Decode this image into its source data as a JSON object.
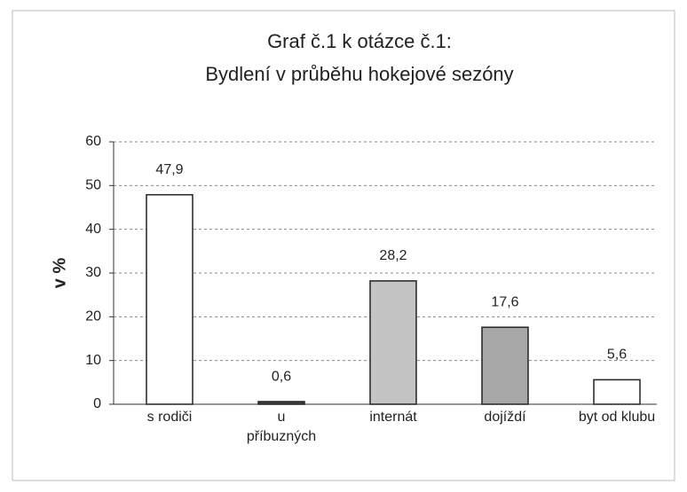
{
  "chart_data": {
    "type": "bar",
    "title": "Graf č.1 k otázce č.1:",
    "subtitle": "Bydlení v průběhu hokejové sezóny",
    "ylabel": "v %",
    "categories": [
      "s rodiči",
      "u\npříbuzných",
      "internát",
      "dojíždí",
      "byt od klubu"
    ],
    "values": [
      47.9,
      0.6,
      28.2,
      17.6,
      5.6
    ],
    "value_labels": [
      "47,9",
      "0,6",
      "28,2",
      "17,6",
      "5,6"
    ],
    "colors": [
      "#ffffff",
      "#444444",
      "#c4c4c4",
      "#a8a8a8",
      "#ffffff"
    ],
    "ylim": [
      0,
      60
    ],
    "yticks": [
      0,
      10,
      20,
      30,
      40,
      50,
      60
    ],
    "grid": true
  }
}
